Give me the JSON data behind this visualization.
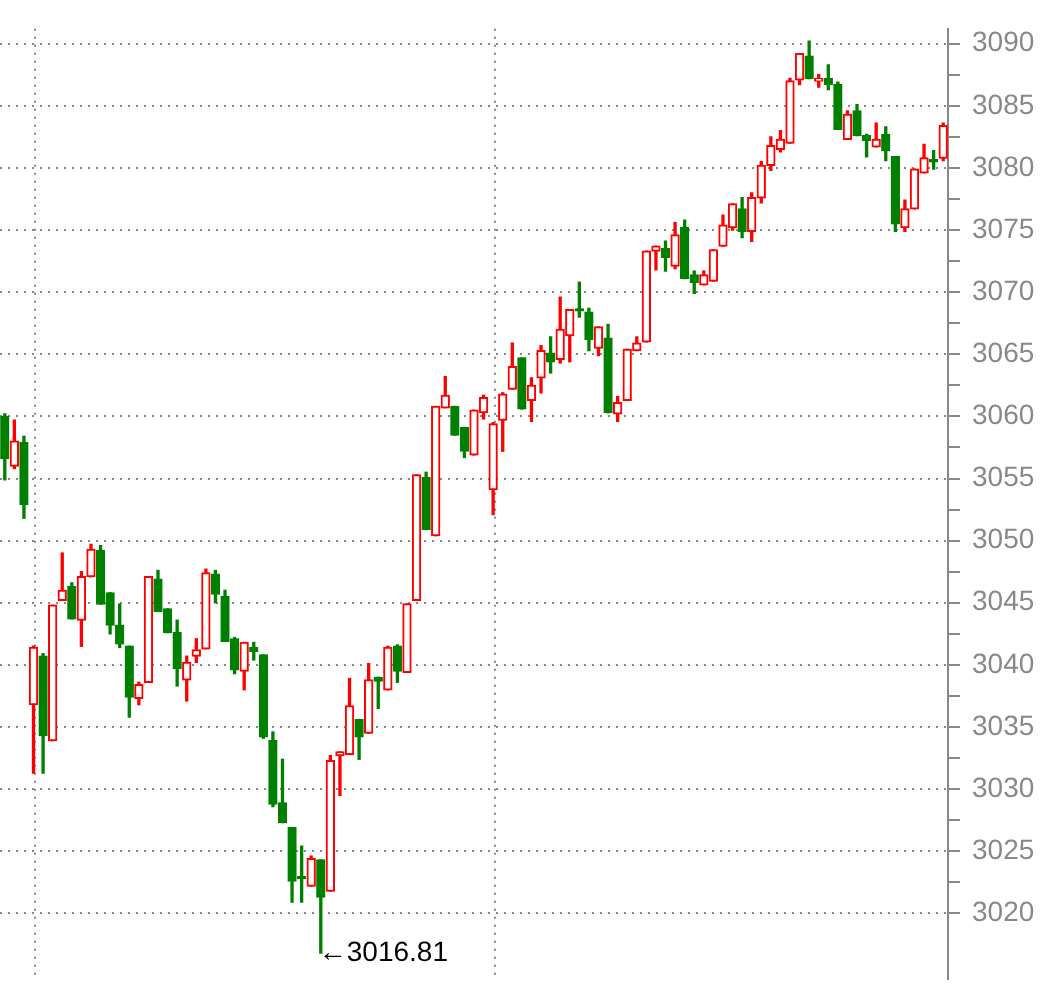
{
  "chart_data": {
    "type": "candlestick",
    "categories": [
      null,
      null,
      null,
      null,
      null,
      null,
      null,
      null,
      null,
      null,
      null,
      null,
      null,
      null,
      null,
      null,
      null,
      null,
      null,
      null,
      null,
      null,
      null,
      null,
      null,
      null,
      null,
      null,
      null,
      null,
      null,
      null,
      null,
      null,
      null,
      null,
      null,
      null,
      null,
      null,
      null,
      null,
      null,
      null,
      null,
      null,
      null,
      null,
      null,
      null,
      null,
      null,
      null,
      null,
      null,
      null,
      null,
      null,
      null,
      null,
      null,
      null,
      null,
      null,
      null,
      null,
      null,
      null,
      null,
      null,
      null,
      null,
      null,
      null,
      null,
      null,
      null,
      null,
      null,
      null,
      null,
      null,
      null,
      null,
      null,
      null,
      null,
      null,
      null,
      null,
      null,
      null,
      null,
      null,
      null,
      null,
      null,
      null,
      null
    ],
    "ohlc": [
      [
        3060,
        3060.2,
        3054.9,
        3056.6
      ],
      [
        3056,
        3059.7,
        3055.8,
        3058
      ],
      [
        3057.9,
        3058.4,
        3051.8,
        3052.9
      ],
      [
        3036.8,
        3041.5,
        3031.3,
        3041.4
      ],
      [
        3040.7,
        3040.9,
        3031.3,
        3034.3
      ],
      [
        3033.9,
        3044.8,
        3033.9,
        3044.8
      ],
      [
        3045.2,
        3049,
        3045.2,
        3046
      ],
      [
        3046.3,
        3046.6,
        3043.7,
        3043.7
      ],
      [
        3043.6,
        3047.5,
        3041.5,
        3047.1
      ],
      [
        3047.1,
        3049.7,
        3047.1,
        3049.3
      ],
      [
        3049.2,
        3049.6,
        3044.9,
        3044.9
      ],
      [
        3045.8,
        3045.8,
        3042.5,
        3043.2
      ],
      [
        3043.2,
        3044.9,
        3041.4,
        3041.7
      ],
      [
        3041.5,
        3041.5,
        3035.8,
        3037.4
      ],
      [
        3037.3,
        3038.6,
        3036.8,
        3038.4
      ],
      [
        3038.6,
        3047.1,
        3038.6,
        3047.1
      ],
      [
        3046.9,
        3047.6,
        3044.3,
        3044.3
      ],
      [
        3044.5,
        3044.5,
        3042.6,
        3042.6
      ],
      [
        3042.6,
        3043.6,
        3038.3,
        3039.7
      ],
      [
        3038.8,
        3040.7,
        3037.1,
        3040.2
      ],
      [
        3040.7,
        3042.1,
        3040.2,
        3041.2
      ],
      [
        3041.3,
        3047.7,
        3041.3,
        3047.4
      ],
      [
        3047.3,
        3047.6,
        3045,
        3045.7
      ],
      [
        3045.5,
        3046,
        3041.9,
        3041.9
      ],
      [
        3042.1,
        3042.2,
        3039.3,
        3039.6
      ],
      [
        3039.5,
        3041.8,
        3038,
        3041.8
      ],
      [
        3041.4,
        3041.8,
        3040.4,
        3041.1
      ],
      [
        3040.8,
        3040.8,
        3034.1,
        3034.2
      ],
      [
        3033.9,
        3034.6,
        3028.6,
        3028.8
      ],
      [
        3028.9,
        3032.4,
        3027.3,
        3027.3
      ],
      [
        3026.9,
        3026.9,
        3020.9,
        3022.6
      ],
      [
        3022.8,
        3025.4,
        3020.9,
        3022.8
      ],
      [
        3022.2,
        3024.6,
        3022.2,
        3024.4
      ],
      [
        3024.3,
        3024.3,
        3016.81,
        3021.3
      ],
      [
        3021.8,
        3032.7,
        3021.8,
        3032.3
      ],
      [
        3032.7,
        3033,
        3029.5,
        3033
      ],
      [
        3032.8,
        3038.9,
        3032.8,
        3036.7
      ],
      [
        3035.6,
        3035.6,
        3032.4,
        3034.2
      ],
      [
        3034.5,
        3040.1,
        3034.5,
        3038.8
      ],
      [
        3039,
        3039,
        3036.5,
        3038.7
      ],
      [
        3038,
        3041.5,
        3038,
        3041.4
      ],
      [
        3041.5,
        3041.6,
        3038.6,
        3039.5
      ],
      [
        3039.4,
        3044.9,
        3039.4,
        3044.9
      ],
      [
        3045.2,
        3055.3,
        3045.2,
        3055.3
      ],
      [
        3055.1,
        3055.5,
        3050.9,
        3050.9
      ],
      [
        3050.4,
        3060.8,
        3050.4,
        3060.8
      ],
      [
        3060.7,
        3063.2,
        3060.7,
        3061.7
      ],
      [
        3060.8,
        3060.8,
        3058.5,
        3058.5
      ],
      [
        3059.1,
        3059.1,
        3056.7,
        3057.2
      ],
      [
        3056.9,
        3060.5,
        3056.9,
        3060.5
      ],
      [
        3060.3,
        3061.7,
        3059.8,
        3061.5
      ],
      [
        3054.1,
        3059.5,
        3052.1,
        3059.4
      ],
      [
        3059.7,
        3061.9,
        3057.2,
        3061.8
      ],
      [
        3062.2,
        3065.9,
        3062.2,
        3064
      ],
      [
        3064.7,
        3064.7,
        3060.6,
        3060.6
      ],
      [
        3061.3,
        3063.1,
        3059.6,
        3062.5
      ],
      [
        3063.1,
        3065.7,
        3061.9,
        3065.3
      ],
      [
        3065.1,
        3066.4,
        3063.5,
        3064.4
      ],
      [
        3064.6,
        3069.6,
        3064.3,
        3067
      ],
      [
        3066.5,
        3068.6,
        3064.4,
        3068.6
      ],
      [
        3068.5,
        3070.8,
        3068,
        3068.5
      ],
      [
        3068.4,
        3068.7,
        3065.3,
        3066.2
      ],
      [
        3065.5,
        3067.2,
        3064.9,
        3067.2
      ],
      [
        3066.3,
        3067.4,
        3060.3,
        3060.3
      ],
      [
        3060.2,
        3061.6,
        3059.6,
        3061.1
      ],
      [
        3061.3,
        3065.4,
        3061.3,
        3065.4
      ],
      [
        3065.3,
        3066.4,
        3065.3,
        3065.9
      ],
      [
        3066,
        3073.3,
        3066,
        3073.3
      ],
      [
        3073.3,
        3073.7,
        3071.8,
        3073.7
      ],
      [
        3073.5,
        3074.1,
        3071.7,
        3072.8
      ],
      [
        3072.1,
        3075.6,
        3071.9,
        3074.6
      ],
      [
        3075.2,
        3075.8,
        3071.1,
        3071.1
      ],
      [
        3071.4,
        3071.7,
        3069.9,
        3070.8
      ],
      [
        3070.6,
        3071.7,
        3070.6,
        3071.4
      ],
      [
        3070.9,
        3073.4,
        3070.9,
        3073.4
      ],
      [
        3073.7,
        3076.2,
        3073.7,
        3075.4
      ],
      [
        3075.2,
        3077.1,
        3075,
        3077.1
      ],
      [
        3076.7,
        3077.6,
        3074.4,
        3074.9
      ],
      [
        3074.9,
        3078,
        3074.1,
        3077.6
      ],
      [
        3077.6,
        3080.5,
        3077.2,
        3080.2
      ],
      [
        3080.2,
        3082.5,
        3079.8,
        3081.8
      ],
      [
        3081.5,
        3083,
        3081.3,
        3082.3
      ],
      [
        3082,
        3087.2,
        3082,
        3087
      ],
      [
        3087.1,
        3089.2,
        3086.7,
        3089.2
      ],
      [
        3089,
        3090.2,
        3087.2,
        3087.2
      ],
      [
        3087,
        3087.5,
        3086.5,
        3087.2
      ],
      [
        3087.2,
        3088.3,
        3086.3,
        3086.7
      ],
      [
        3086.7,
        3086.9,
        3083.1,
        3083.1
      ],
      [
        3082.3,
        3084.6,
        3082.3,
        3084.3
      ],
      [
        3084.6,
        3085.1,
        3082.6,
        3082.6
      ],
      [
        3082.6,
        3082.7,
        3080.9,
        3082.2
      ],
      [
        3081.7,
        3083.6,
        3081.7,
        3082.3
      ],
      [
        3082.7,
        3083.3,
        3080.6,
        3081.4
      ],
      [
        3080.9,
        3080.9,
        3074.9,
        3075.5
      ],
      [
        3075.2,
        3077.4,
        3074.9,
        3076.7
      ],
      [
        3076.7,
        3079.9,
        3076.7,
        3079.9
      ],
      [
        3079.6,
        3081.9,
        3079.6,
        3080.8
      ],
      [
        3080.5,
        3081.4,
        3079.9,
        3080.5
      ],
      [
        3080.8,
        3083.6,
        3080.6,
        3083.4
      ]
    ],
    "colors": [
      "#008000",
      "#ff0000",
      "#008000",
      "#ff0000",
      "#008000",
      "#ff0000",
      "#ff0000",
      "#008000",
      "#ff0000",
      "#ff0000",
      "#008000",
      "#008000",
      "#008000",
      "#008000",
      "#ff0000",
      "#ff0000",
      "#008000",
      "#008000",
      "#008000",
      "#ff0000",
      "#ff0000",
      "#ff0000",
      "#008000",
      "#008000",
      "#008000",
      "#ff0000",
      "#008000",
      "#008000",
      "#008000",
      "#008000",
      "#008000",
      "#008000",
      "#ff0000",
      "#008000",
      "#ff0000",
      "#ff0000",
      "#ff0000",
      "#008000",
      "#ff0000",
      "#008000",
      "#ff0000",
      "#008000",
      "#ff0000",
      "#ff0000",
      "#008000",
      "#ff0000",
      "#ff0000",
      "#008000",
      "#008000",
      "#ff0000",
      "#ff0000",
      "#ff0000",
      "#ff0000",
      "#ff0000",
      "#008000",
      "#ff0000",
      "#ff0000",
      "#008000",
      "#ff0000",
      "#ff0000",
      "#008000",
      "#008000",
      "#ff0000",
      "#008000",
      "#ff0000",
      "#ff0000",
      "#ff0000",
      "#ff0000",
      "#ff0000",
      "#008000",
      "#ff0000",
      "#008000",
      "#008000",
      "#ff0000",
      "#ff0000",
      "#ff0000",
      "#ff0000",
      "#008000",
      "#ff0000",
      "#ff0000",
      "#ff0000",
      "#ff0000",
      "#ff0000",
      "#ff0000",
      "#008000",
      "#ff0000",
      "#008000",
      "#008000",
      "#ff0000",
      "#008000",
      "#008000",
      "#ff0000",
      "#008000",
      "#008000",
      "#ff0000",
      "#ff0000",
      "#ff0000",
      "#008000",
      "#ff0000"
    ],
    "ylim": [
      3014.7,
      3091.2
    ],
    "yticks": [
      3020,
      {
        "value": 3022.5,
        "label": null
      },
      3025,
      {
        "value": 3027.5,
        "label": null
      },
      3030,
      {
        "value": 3032.5,
        "label": null
      },
      3035,
      {
        "value": 3037.5,
        "label": null
      },
      3040,
      {
        "value": 3042.5,
        "label": null
      },
      3045,
      {
        "value": 3047.5,
        "label": null
      },
      3050,
      {
        "value": 3052.5,
        "label": null
      },
      3055,
      {
        "value": 3057.5,
        "label": null
      },
      3060,
      {
        "value": 3062.5,
        "label": null
      },
      3065,
      {
        "value": 3067.5,
        "label": null
      },
      3070,
      {
        "value": 3072.5,
        "label": null
      },
      3075,
      {
        "value": 3077.5,
        "label": null
      },
      3080,
      {
        "value": 3082.5,
        "label": null
      },
      3085,
      {
        "value": 3087.5,
        "label": null
      },
      3090
    ],
    "grid": "y",
    "annotations": [
      "←3016.81"
    ]
  }
}
